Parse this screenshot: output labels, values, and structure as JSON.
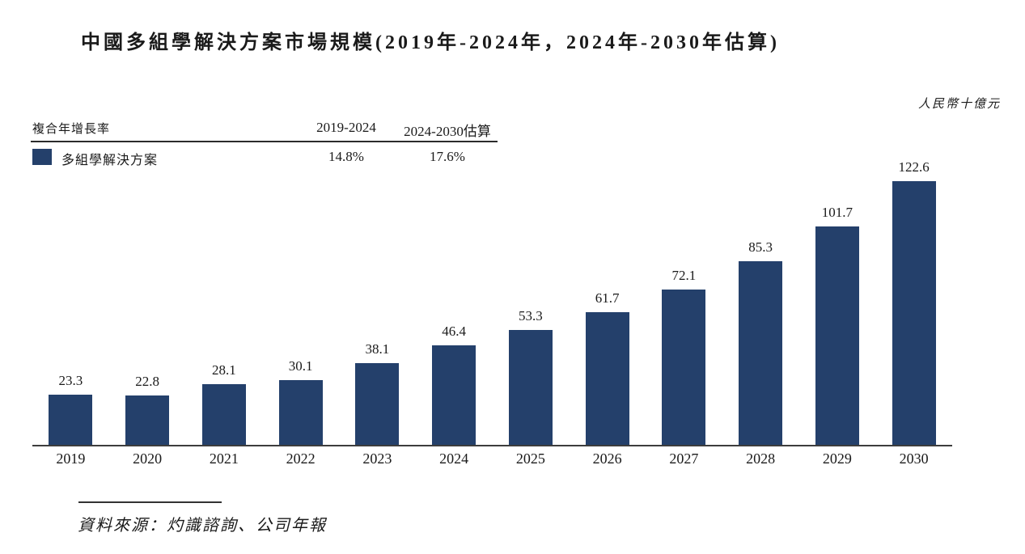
{
  "title": "中國多組學解決方案市場規模(2019年-2024年，2024年-2030年估算)",
  "unit_label": "人民幣十億元",
  "cagr_table": {
    "row_header": "複合年增長率",
    "col_headers": [
      "2019-2024",
      "2024-2030估算"
    ],
    "series_label": "多組學解決方案",
    "values": [
      "14.8%",
      "17.6%"
    ]
  },
  "source": "資料來源：灼識諮詢、公司年報",
  "colors": {
    "bar": "#24406B",
    "axis": "#3d3d3d",
    "text": "#1a1a1a"
  },
  "chart_data": {
    "type": "bar",
    "title": "中國多組學解決方案市場規模(2019年-2024年，2024年-2030年估算)",
    "categories": [
      "2019",
      "2020",
      "2021",
      "2022",
      "2023",
      "2024",
      "2025",
      "2026",
      "2027",
      "2028",
      "2029",
      "2030"
    ],
    "values": [
      23.3,
      22.8,
      28.1,
      30.1,
      38.1,
      46.4,
      53.3,
      61.7,
      72.1,
      85.3,
      101.7,
      122.6
    ],
    "series_name": "多組學解決方案",
    "ylabel": "人民幣十億元",
    "ylim": [
      0,
      130
    ],
    "grid": false,
    "data_labels": true,
    "legend_position": "top-left",
    "cagr": {
      "2019-2024": "14.8%",
      "2024-2030估算": "17.6%"
    }
  }
}
